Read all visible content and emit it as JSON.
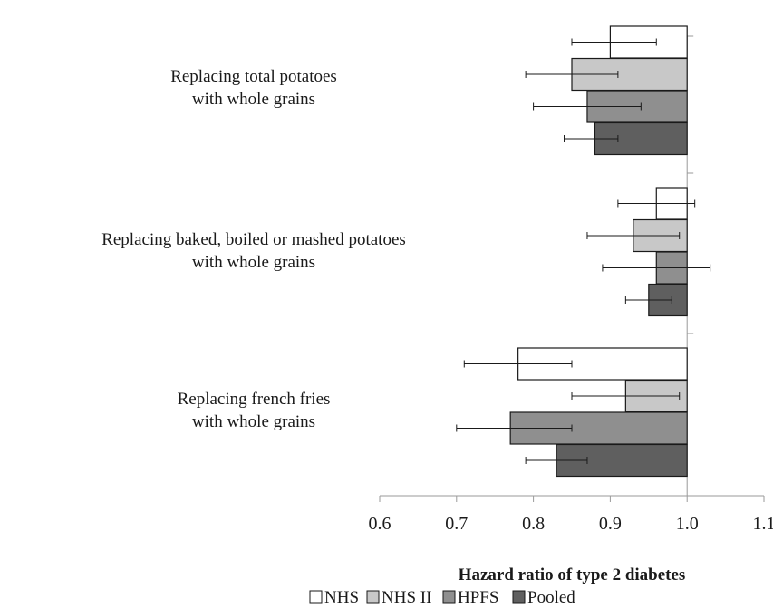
{
  "chart_data": {
    "type": "bar",
    "orientation": "horizontal",
    "baseline": 1.0,
    "categories": [
      [
        "Replacing total potatoes",
        "with whole grains"
      ],
      [
        "Replacing baked, boiled or mashed potatoes",
        "with whole grains"
      ],
      [
        "Replacing french fries",
        "with whole grains"
      ]
    ],
    "series": [
      {
        "name": "NHS",
        "color": "#ffffff",
        "values": [
          0.9,
          0.96,
          0.78
        ],
        "ci_low": [
          0.85,
          0.91,
          0.71
        ],
        "ci_high": [
          0.96,
          1.01,
          0.85
        ]
      },
      {
        "name": "NHS II",
        "color": "#c8c8c8",
        "values": [
          0.85,
          0.93,
          0.92
        ],
        "ci_low": [
          0.79,
          0.87,
          0.85
        ],
        "ci_high": [
          0.91,
          0.99,
          0.99
        ]
      },
      {
        "name": "HPFS",
        "color": "#8f8f8f",
        "values": [
          0.87,
          0.96,
          0.77
        ],
        "ci_low": [
          0.8,
          0.89,
          0.7
        ],
        "ci_high": [
          0.94,
          1.03,
          0.85
        ]
      },
      {
        "name": "Pooled",
        "color": "#5f5f5f",
        "values": [
          0.88,
          0.95,
          0.83
        ],
        "ci_low": [
          0.84,
          0.92,
          0.79
        ],
        "ci_high": [
          0.91,
          0.98,
          0.87
        ]
      }
    ],
    "xlabel": "Hazard ratio of type 2 diabetes",
    "xlim": [
      0.6,
      1.1
    ],
    "xticks": [
      "0.6",
      "0.7",
      "0.8",
      "0.9",
      "1.0",
      "1.1"
    ],
    "legend_position": "bottom",
    "grid": false
  }
}
